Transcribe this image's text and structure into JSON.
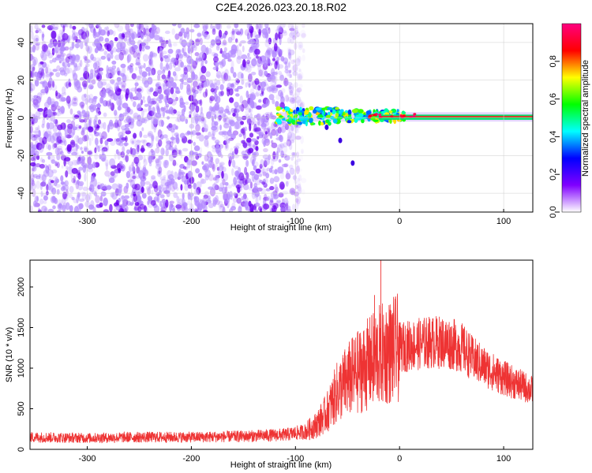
{
  "title": "C2E4.2026.023.20.18.R02",
  "chart_data": [
    {
      "type": "heatmap",
      "xlabel": "Height of straight line (km)",
      "ylabel": "Frequency (Hz)",
      "xlim": [
        -355,
        128
      ],
      "ylim": [
        -50,
        50
      ],
      "xticks": [
        -300,
        -200,
        -100,
        0,
        100
      ],
      "yticks": [
        -40,
        -20,
        0,
        20,
        40
      ],
      "colorbar": {
        "label": "Normalized spectral amplitude",
        "range": [
          0.0,
          1.0
        ],
        "ticks": [
          0.0,
          0.2,
          0.4,
          0.6,
          0.8
        ],
        "tick_labels": [
          "0.0",
          "0.2",
          "0.4",
          "0.6",
          "0.8"
        ],
        "colors": [
          "#ffffff",
          "#8000ff",
          "#0000ff",
          "#00ffff",
          "#00ff00",
          "#ffff00",
          "#ff0000",
          "#ff0080"
        ]
      },
      "regions": [
        {
          "name": "noise",
          "x_range": [
            -355,
            -100
          ],
          "freq_range": [
            -50,
            50
          ],
          "amplitude": 0.15
        },
        {
          "name": "transition",
          "x_range": [
            -120,
            5
          ],
          "freq_center": 1,
          "freq_width": 6,
          "amplitude": 0.45
        },
        {
          "name": "signal-line",
          "x_range": [
            -20,
            128
          ],
          "freq_center": 0.5,
          "amplitude": 0.9
        }
      ]
    },
    {
      "type": "line",
      "xlabel": "Height of straight line (km)",
      "ylabel": "SNR (10 * v/v)",
      "xlim": [
        -355,
        128
      ],
      "ylim": [
        0,
        2330
      ],
      "xticks": [
        -300,
        -200,
        -100,
        0,
        100
      ],
      "yticks": [
        0,
        500,
        1000,
        1500,
        2000
      ],
      "series": [
        {
          "name": "SNR",
          "color": "#ee3333",
          "x": [
            -355,
            -300,
            -250,
            -200,
            -150,
            -110,
            -90,
            -80,
            -70,
            -60,
            -50,
            -40,
            -30,
            -20,
            -10,
            0,
            10,
            20,
            30,
            40,
            50,
            60,
            70,
            80,
            90,
            100,
            110,
            120,
            128
          ],
          "y": [
            150,
            140,
            150,
            150,
            160,
            180,
            220,
            300,
            450,
            700,
            850,
            950,
            1050,
            1150,
            1200,
            1250,
            1280,
            1300,
            1320,
            1320,
            1300,
            1250,
            1120,
            1030,
            950,
            880,
            820,
            770,
            720
          ]
        }
      ],
      "peaks": [
        {
          "x": -18,
          "y": 2330
        },
        {
          "x": -24,
          "y": 1900
        },
        {
          "x": -10,
          "y": 1720
        }
      ]
    }
  ]
}
